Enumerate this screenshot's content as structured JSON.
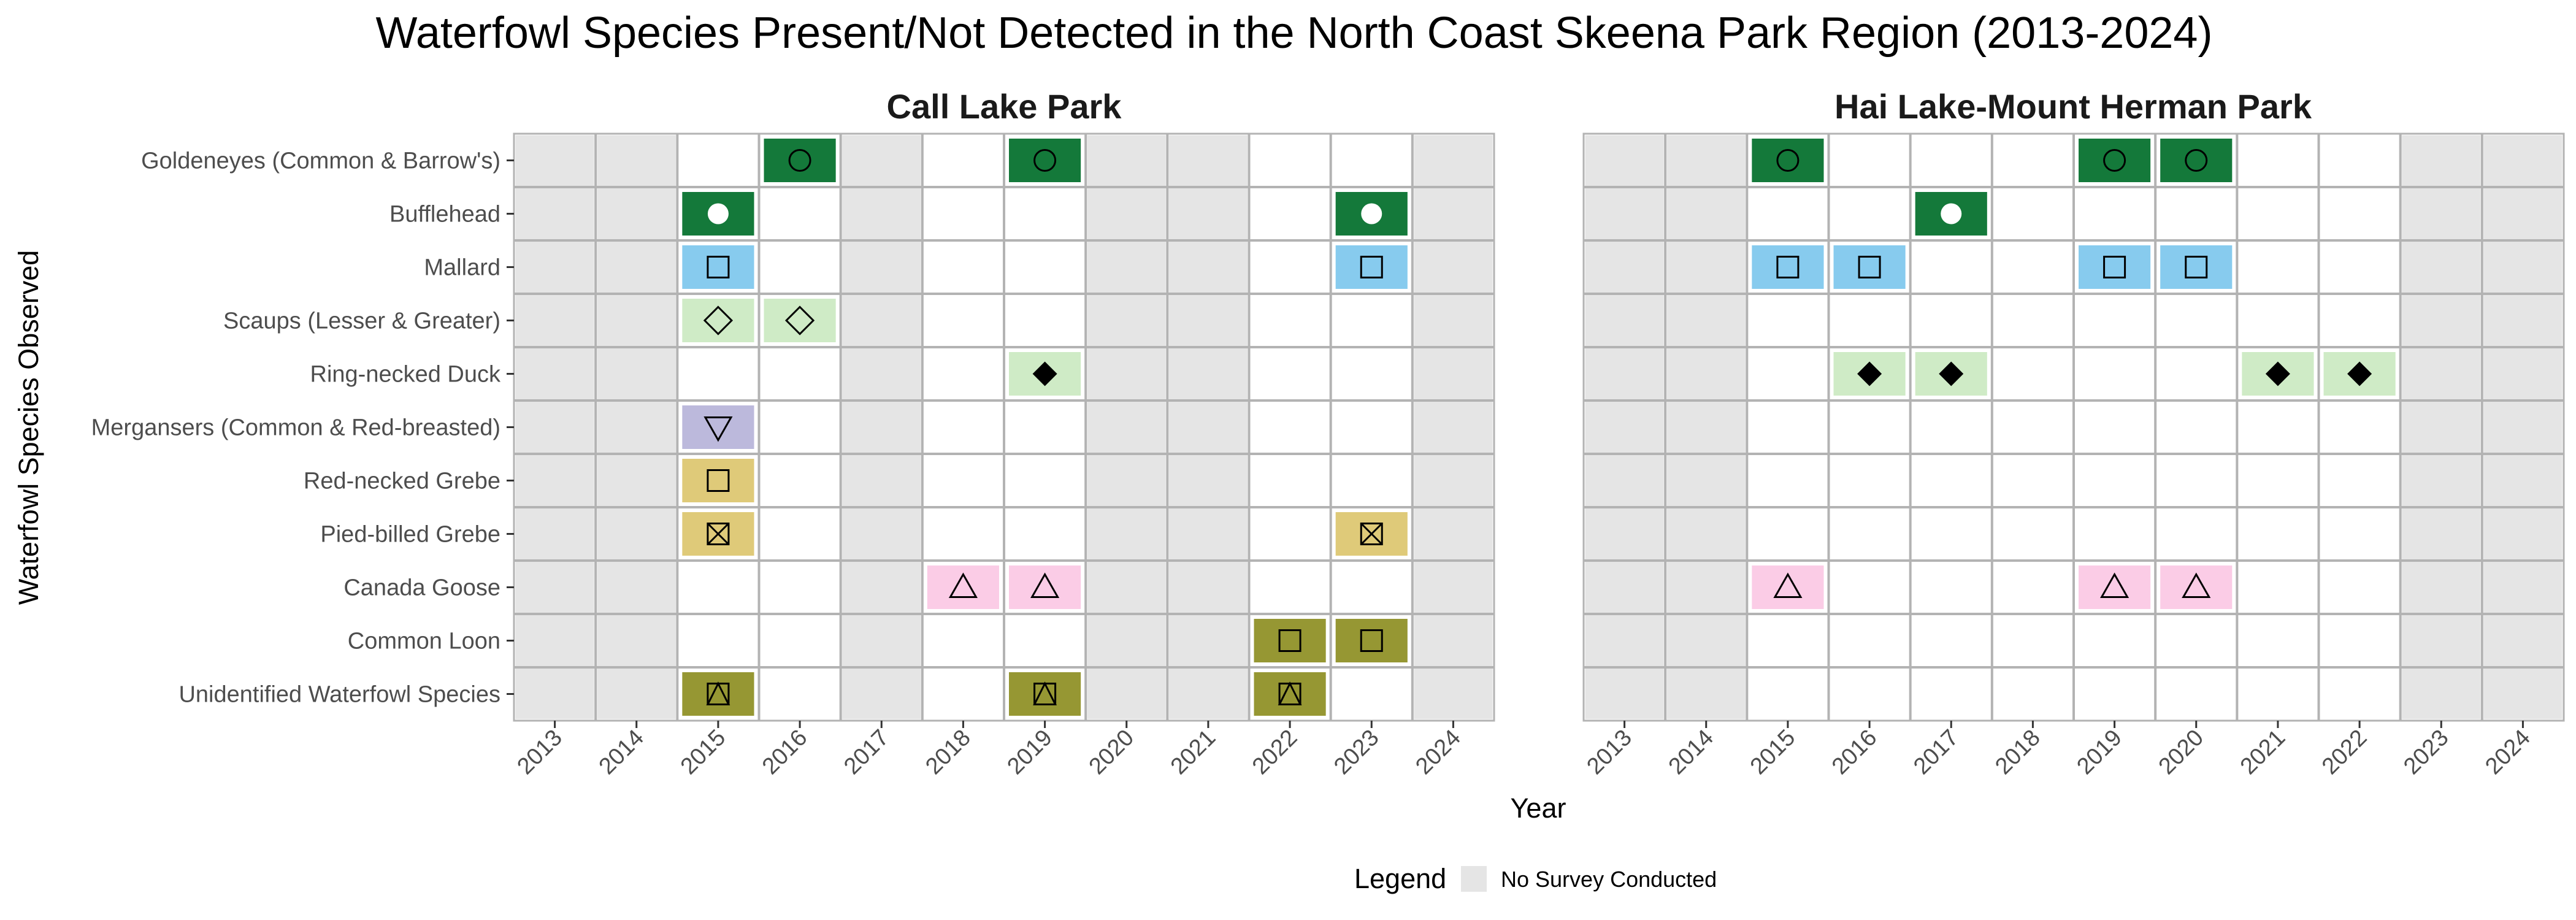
{
  "chart_data": {
    "type": "heatmap",
    "title": "Waterfowl Species Present/Not Detected in the North Coast Skeena Park Region (2013-2024)",
    "xlabel": "Year",
    "ylabel": "Waterfowl Species Observed",
    "legend": {
      "title": "Legend",
      "items": [
        {
          "label": "No Survey Conducted",
          "color": "#e5e5e5"
        }
      ],
      "position": "bottom"
    },
    "years": [
      "2013",
      "2014",
      "2015",
      "2016",
      "2017",
      "2018",
      "2019",
      "2020",
      "2021",
      "2022",
      "2023",
      "2024"
    ],
    "species": [
      {
        "name": "Goldeneyes (Common & Barrow's)",
        "color": "#14793a",
        "symbol": "open-circle"
      },
      {
        "name": "Bufflehead",
        "color": "#14793a",
        "symbol": "filled-circle"
      },
      {
        "name": "Mallard",
        "color": "#87cbee",
        "symbol": "open-square"
      },
      {
        "name": "Scaups (Lesser & Greater)",
        "color": "#cfebc6",
        "symbol": "open-diamond"
      },
      {
        "name": "Ring-necked Duck",
        "color": "#cfebc6",
        "symbol": "filled-diamond"
      },
      {
        "name": "Mergansers (Common & Red-breasted)",
        "color": "#bcb9dc",
        "symbol": "open-triangle-down"
      },
      {
        "name": "Red-necked Grebe",
        "color": "#dfca79",
        "symbol": "open-square"
      },
      {
        "name": "Pied-billed Grebe",
        "color": "#dfca79",
        "symbol": "square-x"
      },
      {
        "name": "Canada Goose",
        "color": "#fbcce6",
        "symbol": "open-triangle"
      },
      {
        "name": "Common Loon",
        "color": "#969733",
        "symbol": "open-square"
      },
      {
        "name": "Unidentified Waterfowl Species",
        "color": "#969733",
        "symbol": "square-triangle"
      }
    ],
    "panels": [
      {
        "title": "Call Lake Park",
        "no_survey_years": [
          "2013",
          "2014",
          "2017",
          "2020",
          "2021",
          "2024"
        ],
        "detections": [
          {
            "species": "Goldeneyes (Common & Barrow's)",
            "years": [
              "2016",
              "2019"
            ]
          },
          {
            "species": "Bufflehead",
            "years": [
              "2015",
              "2023"
            ]
          },
          {
            "species": "Mallard",
            "years": [
              "2015",
              "2023"
            ]
          },
          {
            "species": "Scaups (Lesser & Greater)",
            "years": [
              "2015",
              "2016"
            ]
          },
          {
            "species": "Ring-necked Duck",
            "years": [
              "2019"
            ]
          },
          {
            "species": "Mergansers (Common & Red-breasted)",
            "years": [
              "2015"
            ]
          },
          {
            "species": "Red-necked Grebe",
            "years": [
              "2015"
            ]
          },
          {
            "species": "Pied-billed Grebe",
            "years": [
              "2015",
              "2023"
            ]
          },
          {
            "species": "Canada Goose",
            "years": [
              "2018",
              "2019"
            ]
          },
          {
            "species": "Common Loon",
            "years": [
              "2022",
              "2023"
            ]
          },
          {
            "species": "Unidentified Waterfowl Species",
            "years": [
              "2015",
              "2019",
              "2022"
            ]
          }
        ]
      },
      {
        "title": "Hai Lake-Mount Herman Park",
        "no_survey_years": [
          "2013",
          "2014",
          "2023",
          "2024"
        ],
        "detections": [
          {
            "species": "Goldeneyes (Common & Barrow's)",
            "years": [
              "2015",
              "2019",
              "2020"
            ]
          },
          {
            "species": "Bufflehead",
            "years": [
              "2017"
            ]
          },
          {
            "species": "Mallard",
            "years": [
              "2015",
              "2016",
              "2019",
              "2020"
            ]
          },
          {
            "species": "Scaups (Lesser & Greater)",
            "years": []
          },
          {
            "species": "Ring-necked Duck",
            "years": [
              "2016",
              "2017",
              "2021",
              "2022"
            ]
          },
          {
            "species": "Mergansers (Common & Red-breasted)",
            "years": []
          },
          {
            "species": "Red-necked Grebe",
            "years": []
          },
          {
            "species": "Pied-billed Grebe",
            "years": []
          },
          {
            "species": "Canada Goose",
            "years": [
              "2015",
              "2019",
              "2020"
            ]
          },
          {
            "species": "Common Loon",
            "years": []
          },
          {
            "species": "Unidentified Waterfowl Species",
            "years": []
          }
        ]
      }
    ]
  }
}
